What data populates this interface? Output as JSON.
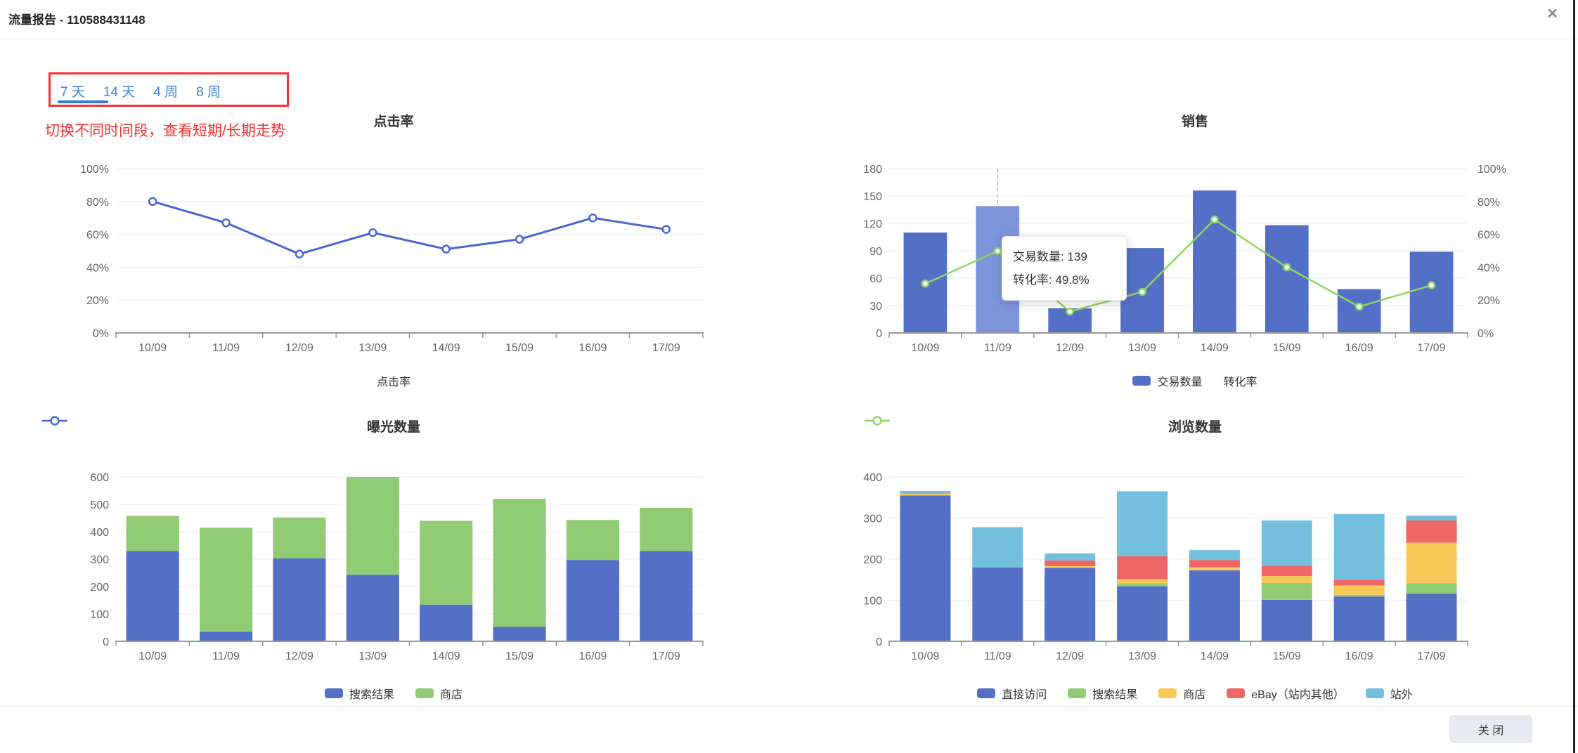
{
  "header": {
    "title": "流量报告 - 110588431148",
    "close_icon": "✕"
  },
  "tabs": {
    "items": [
      {
        "label": "7 天",
        "active": true
      },
      {
        "label": "14 天",
        "active": false
      },
      {
        "label": "4 周",
        "active": false
      },
      {
        "label": "8 周",
        "active": false
      }
    ]
  },
  "annotation": {
    "text": "切换不同时间段，查看短期/长期走势"
  },
  "colors": {
    "accent_tab": "#3E7EDB",
    "annotation_red": "#F53030",
    "bar_blue": "#5470C6",
    "bar_blue_highlight": "#7E95DC",
    "bar_green": "#91CC75",
    "bar_yellow": "#FAC858",
    "bar_red": "#EE6666",
    "bar_cyan": "#73C0DE",
    "line_blue": "#4A66CF",
    "line_green": "#8FD465",
    "grid": "#E8ECF6",
    "axis": "#999999",
    "tick_text": "#666666",
    "title_text": "#333333"
  },
  "chart_data": [
    {
      "type": "line",
      "default_series_type": "line",
      "title": "点击率",
      "categories": [
        "10/09",
        "11/09",
        "12/09",
        "13/09",
        "14/09",
        "15/09",
        "16/09",
        "17/09"
      ],
      "ylim": [
        0,
        100
      ],
      "yticks": [
        0,
        20,
        40,
        60,
        80,
        100
      ],
      "ytick_suffix": "%",
      "series": [
        {
          "name": "点击率",
          "type": "line",
          "color": "#4A66CF",
          "values": [
            80,
            67,
            48,
            61,
            51,
            57,
            70,
            63
          ]
        }
      ],
      "legend_position": "bottom",
      "grid": true
    },
    {
      "type": "bar-line",
      "title": "销售",
      "categories": [
        "10/09",
        "11/09",
        "12/09",
        "13/09",
        "14/09",
        "15/09",
        "16/09",
        "17/09"
      ],
      "left_ylim": [
        0,
        180
      ],
      "left_yticks": [
        0,
        30,
        60,
        90,
        120,
        150,
        180
      ],
      "right_ylim": [
        0,
        100
      ],
      "right_yticks": [
        0,
        20,
        40,
        60,
        80,
        100
      ],
      "highlight_index": 1,
      "tooltip": {
        "line1": "交易数量: 139",
        "line2": "转化率: 49.8%"
      },
      "series": [
        {
          "name": "交易数量",
          "type": "bar",
          "color": "#5470C6",
          "values": [
            110,
            139,
            27,
            93,
            156,
            118,
            48,
            89
          ]
        },
        {
          "name": "转化率",
          "type": "line",
          "color": "#8FD465",
          "values": [
            30,
            49.8,
            13,
            25,
            69,
            40,
            16,
            29
          ]
        }
      ],
      "legend_position": "bottom",
      "grid": true
    },
    {
      "type": "stacked-bar",
      "default_series_type": "bar",
      "title": "曝光数量",
      "categories": [
        "10/09",
        "11/09",
        "12/09",
        "13/09",
        "14/09",
        "15/09",
        "16/09",
        "17/09"
      ],
      "ylim": [
        0,
        600
      ],
      "yticks": [
        0,
        100,
        200,
        300,
        400,
        500,
        600
      ],
      "series": [
        {
          "name": "搜索结果",
          "type": "bar",
          "color": "#5470C6",
          "values": [
            330,
            35,
            303,
            243,
            134,
            53,
            297,
            330
          ]
        },
        {
          "name": "商店",
          "type": "bar",
          "color": "#91CC75",
          "values": [
            128,
            380,
            149,
            357,
            306,
            467,
            146,
            157
          ]
        }
      ],
      "legend_position": "bottom",
      "grid": true
    },
    {
      "type": "stacked-bar",
      "default_series_type": "bar",
      "title": "浏览数量",
      "categories": [
        "10/09",
        "11/09",
        "12/09",
        "13/09",
        "14/09",
        "15/09",
        "16/09",
        "17/09"
      ],
      "ylim": [
        0,
        400
      ],
      "yticks": [
        0,
        100,
        200,
        300,
        400
      ],
      "series": [
        {
          "name": "直接访问",
          "type": "bar",
          "color": "#5470C6",
          "values": [
            355,
            180,
            179,
            134,
            173,
            101,
            109,
            116
          ]
        },
        {
          "name": "搜索结果",
          "type": "bar",
          "color": "#91CC75",
          "values": [
            0,
            0,
            0,
            7,
            0,
            41,
            4,
            25
          ]
        },
        {
          "name": "商店",
          "type": "bar",
          "color": "#FAC858",
          "values": [
            4,
            0,
            4,
            10,
            7,
            17,
            23,
            99
          ]
        },
        {
          "name": "eBay（站内其他）",
          "type": "bar",
          "color": "#EE6666",
          "values": [
            0,
            0,
            14,
            56,
            18,
            25,
            14,
            54
          ]
        },
        {
          "name": "站外",
          "type": "bar",
          "color": "#73C0DE",
          "values": [
            7,
            98,
            17,
            158,
            24,
            110,
            160,
            12
          ]
        }
      ],
      "legend_position": "bottom",
      "grid": true
    }
  ],
  "footer": {
    "close_label": "关 闭"
  }
}
